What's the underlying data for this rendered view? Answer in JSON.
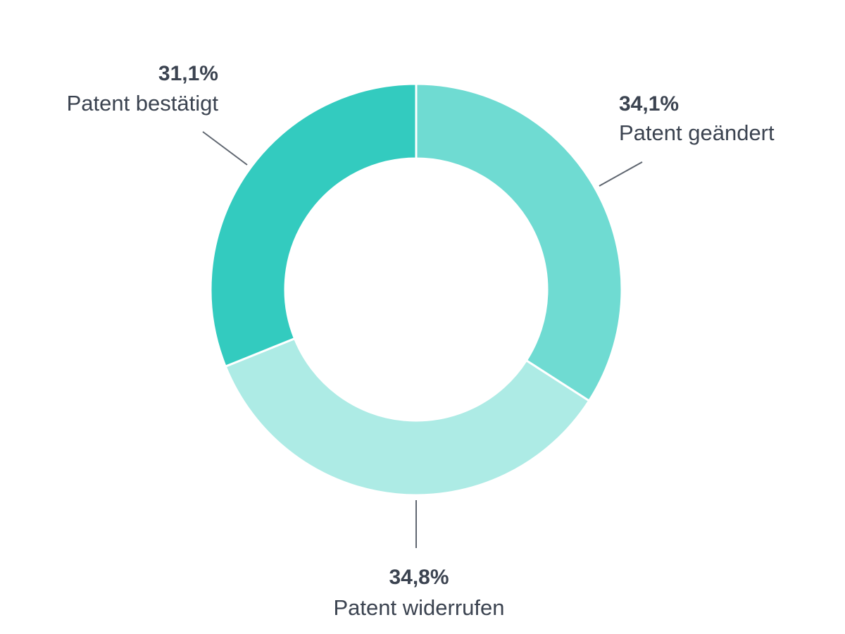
{
  "chart_data": {
    "type": "pie",
    "variant": "donut",
    "title": "",
    "legend": "none",
    "slices": [
      {
        "label": "Patent geändert",
        "value": 34.1,
        "value_label": "34,1%",
        "color": "#6fdbd2"
      },
      {
        "label": "Patent widerrufen",
        "value": 34.8,
        "value_label": "34,8%",
        "color": "#adebe5"
      },
      {
        "label": "Patent bestätigt",
        "value": 31.1,
        "value_label": "31,1%",
        "color": "#33cbbf"
      }
    ]
  }
}
